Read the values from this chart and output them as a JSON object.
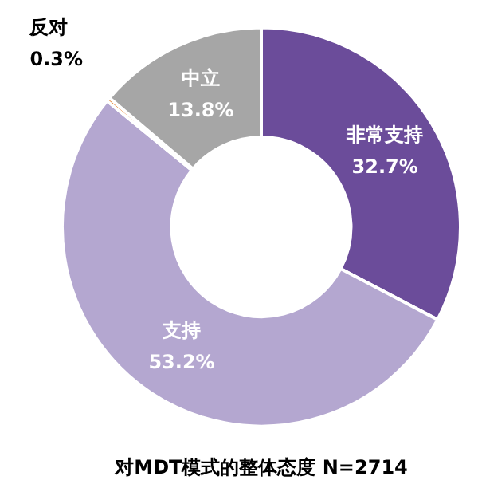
{
  "chart_data": {
    "type": "donut",
    "title": "对MDT模式的整体态度 N=2714",
    "categories": [
      "非常支持",
      "支持",
      "反对",
      "中立"
    ],
    "values": [
      32.7,
      53.2,
      0.3,
      13.8
    ],
    "value_labels": [
      "32.7%",
      "53.2%",
      "0.3%",
      "13.8%"
    ],
    "colors": [
      "#6b4c9a",
      "#b4a7d0",
      "#e46c0a",
      "#a6a6a6"
    ],
    "legend": false
  }
}
